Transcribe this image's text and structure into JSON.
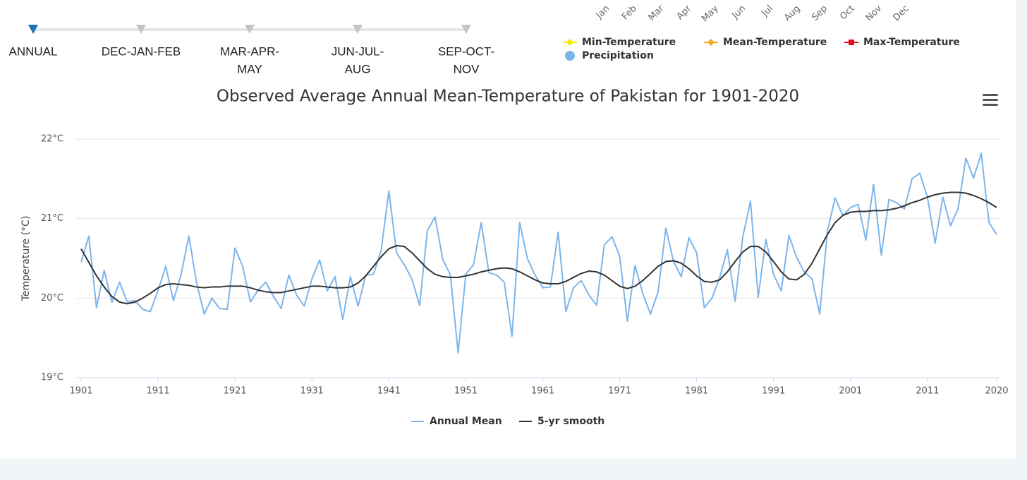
{
  "month_labels": [
    "Jan",
    "Feb",
    "Mar",
    "Apr",
    "May",
    "Jun",
    "Jul",
    "Aug",
    "Sep",
    "Oct",
    "Nov",
    "Dec"
  ],
  "seasons": [
    [
      "ANNUAL"
    ],
    [
      "DEC-JAN-FEB"
    ],
    [
      "MAR-APR-",
      "MAY"
    ],
    [
      "JUN-JUL-",
      "AUG"
    ],
    [
      "SEP-OCT-",
      "NOV"
    ]
  ],
  "active_season": 0,
  "variable_legend": [
    {
      "name": "Min-Temperature",
      "color": "#f5e900",
      "marker": "diamond"
    },
    {
      "name": "Mean-Temperature",
      "color": "#f5a623",
      "marker": "diamond"
    },
    {
      "name": "Max-Temperature",
      "color": "#e0101a",
      "marker": "square"
    },
    {
      "name": "Precipitation",
      "color": "#7cb5ec",
      "marker": "circle"
    }
  ],
  "chart_data": {
    "type": "line",
    "title": "Observed Average Annual Mean-Temperature of Pakistan for 1901-2020",
    "ylabel": "Temperature (°C)",
    "x": [
      1901,
      1902,
      1903,
      1904,
      1905,
      1906,
      1907,
      1908,
      1909,
      1910,
      1911,
      1912,
      1913,
      1914,
      1915,
      1916,
      1917,
      1918,
      1919,
      1920,
      1921,
      1922,
      1923,
      1924,
      1925,
      1926,
      1927,
      1928,
      1929,
      1930,
      1931,
      1932,
      1933,
      1934,
      1935,
      1936,
      1937,
      1938,
      1939,
      1940,
      1941,
      1942,
      1943,
      1944,
      1945,
      1946,
      1947,
      1948,
      1949,
      1950,
      1951,
      1952,
      1953,
      1954,
      1955,
      1956,
      1957,
      1958,
      1959,
      1960,
      1961,
      1962,
      1963,
      1964,
      1965,
      1966,
      1967,
      1968,
      1969,
      1970,
      1971,
      1972,
      1973,
      1974,
      1975,
      1976,
      1977,
      1978,
      1979,
      1980,
      1981,
      1982,
      1983,
      1984,
      1985,
      1986,
      1987,
      1988,
      1989,
      1990,
      1991,
      1992,
      1993,
      1994,
      1995,
      1996,
      1997,
      1998,
      1999,
      2000,
      2001,
      2002,
      2003,
      2004,
      2005,
      2006,
      2007,
      2008,
      2009,
      2010,
      2011,
      2012,
      2013,
      2014,
      2015,
      2016,
      2017,
      2018,
      2019,
      2020
    ],
    "series": [
      {
        "name": "Annual Mean",
        "color": "#7cb5ec",
        "values": [
          20.45,
          20.78,
          19.88,
          20.35,
          19.95,
          20.2,
          19.95,
          19.97,
          19.86,
          19.83,
          20.1,
          20.4,
          19.97,
          20.3,
          20.78,
          20.2,
          19.8,
          20.0,
          19.87,
          19.86,
          20.63,
          20.4,
          19.95,
          20.1,
          20.2,
          20.02,
          19.87,
          20.29,
          20.04,
          19.9,
          20.24,
          20.48,
          20.09,
          20.27,
          19.73,
          20.27,
          19.9,
          20.29,
          20.3,
          20.6,
          21.35,
          20.57,
          20.42,
          20.24,
          19.91,
          20.85,
          21.02,
          20.49,
          20.29,
          19.31,
          20.3,
          20.42,
          20.95,
          20.32,
          20.29,
          20.2,
          19.52,
          20.95,
          20.5,
          20.29,
          20.13,
          20.14,
          20.83,
          19.83,
          20.13,
          20.22,
          20.04,
          19.91,
          20.67,
          20.77,
          20.53,
          19.71,
          20.41,
          20.06,
          19.8,
          20.08,
          20.88,
          20.46,
          20.27,
          20.76,
          20.57,
          19.88,
          20.0,
          20.26,
          20.61,
          19.96,
          20.77,
          21.22,
          20.01,
          20.74,
          20.3,
          20.09,
          20.79,
          20.51,
          20.33,
          20.24,
          19.8,
          20.84,
          21.26,
          21.04,
          21.14,
          21.18,
          20.73,
          21.43,
          20.54,
          21.24,
          21.2,
          21.12,
          21.5,
          21.57,
          21.27,
          20.69,
          21.27,
          20.91,
          21.13,
          21.76,
          21.51,
          21.82,
          20.95,
          20.8
        ]
      },
      {
        "name": "5-yr smooth",
        "color": "#333333",
        "values": [
          20.62,
          20.45,
          20.28,
          20.14,
          20.02,
          19.95,
          19.93,
          19.95,
          20.0,
          20.06,
          20.13,
          20.17,
          20.18,
          20.17,
          20.16,
          20.14,
          20.13,
          20.14,
          20.14,
          20.15,
          20.15,
          20.15,
          20.13,
          20.1,
          20.08,
          20.07,
          20.07,
          20.09,
          20.11,
          20.13,
          20.15,
          20.15,
          20.14,
          20.13,
          20.13,
          20.14,
          20.19,
          20.28,
          20.4,
          20.52,
          20.62,
          20.66,
          20.65,
          20.57,
          20.47,
          20.37,
          20.3,
          20.27,
          20.26,
          20.26,
          20.28,
          20.3,
          20.33,
          20.35,
          20.37,
          20.38,
          20.37,
          20.33,
          20.28,
          20.23,
          20.19,
          20.18,
          20.18,
          20.21,
          20.26,
          20.31,
          20.34,
          20.33,
          20.29,
          20.22,
          20.15,
          20.12,
          20.15,
          20.22,
          20.31,
          20.4,
          20.46,
          20.47,
          20.44,
          20.37,
          20.28,
          20.21,
          20.2,
          20.23,
          20.33,
          20.46,
          20.58,
          20.65,
          20.65,
          20.58,
          20.46,
          20.33,
          20.24,
          20.23,
          20.3,
          20.44,
          20.62,
          20.8,
          20.95,
          21.04,
          21.08,
          21.09,
          21.09,
          21.1,
          21.1,
          21.11,
          21.13,
          21.16,
          21.2,
          21.23,
          21.27,
          21.3,
          21.32,
          21.33,
          21.33,
          21.32,
          21.29,
          21.25,
          21.2,
          21.14
        ]
      }
    ],
    "xlim": [
      1901,
      2020
    ],
    "xticks": [
      1901,
      1911,
      1921,
      1931,
      1941,
      1951,
      1961,
      1971,
      1981,
      1991,
      2001,
      2011,
      2020
    ],
    "ylim": [
      19,
      22
    ],
    "yticks": [
      {
        "value": 19,
        "label": "19°C"
      },
      {
        "value": 20,
        "label": "20°C"
      },
      {
        "value": 21,
        "label": "21°C"
      },
      {
        "value": 22,
        "label": "22°C"
      }
    ],
    "grid": true
  }
}
